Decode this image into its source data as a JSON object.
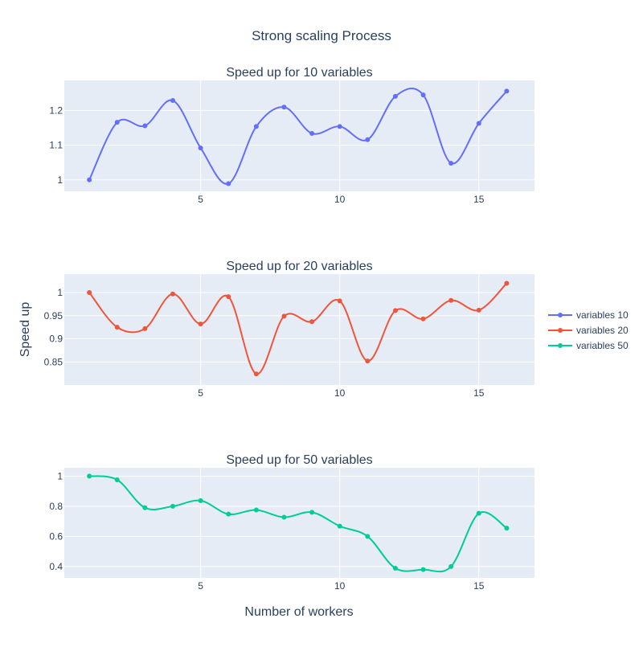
{
  "chart_data": {
    "type": "line",
    "title": "Strong scaling Process",
    "xlabel": "Number of workers",
    "ylabel": "Speed up",
    "x": [
      1,
      2,
      3,
      4,
      5,
      6,
      7,
      8,
      9,
      10,
      11,
      12,
      13,
      14,
      15,
      16
    ],
    "xlim": [
      0.1,
      17
    ],
    "xticks": [
      5,
      10,
      15
    ],
    "grid": true,
    "legend_position": "right",
    "colors": {
      "plot_bg": "#e5ecf6",
      "grid": "#ffffff",
      "text": "#2a3f5f"
    },
    "subplots": [
      {
        "title": "Speed up for 10 variables",
        "ylim": [
          0.967,
          1.287
        ],
        "yticks": [
          {
            "value": 1,
            "label": "1"
          },
          {
            "value": 1.1,
            "label": "1.1"
          },
          {
            "value": 1.2,
            "label": "1.2"
          }
        ],
        "series_index": 0
      },
      {
        "title": "Speed up for 20 variables",
        "ylim": [
          0.8,
          1.04
        ],
        "yticks": [
          {
            "value": 0.85,
            "label": "0.85"
          },
          {
            "value": 0.9,
            "label": "0.9"
          },
          {
            "value": 0.95,
            "label": "0.95"
          },
          {
            "value": 1,
            "label": "1"
          }
        ],
        "series_index": 1
      },
      {
        "title": "Speed up for 50 variables",
        "ylim": [
          0.325,
          1.055
        ],
        "yticks": [
          {
            "value": 0.4,
            "label": "0.4"
          },
          {
            "value": 0.6,
            "label": "0.6"
          },
          {
            "value": 0.8,
            "label": "0.8"
          },
          {
            "value": 1,
            "label": "1"
          }
        ],
        "series_index": 2
      }
    ],
    "series": [
      {
        "name": "variables 10",
        "color": "#636efa",
        "values": [
          1.0,
          1.166,
          1.156,
          1.229,
          1.092,
          0.989,
          1.154,
          1.21,
          1.134,
          1.154,
          1.116,
          1.241,
          1.245,
          1.048,
          1.163,
          1.256
        ]
      },
      {
        "name": "variables 20",
        "color": "#ef553b",
        "values": [
          1.0,
          0.925,
          0.922,
          0.997,
          0.932,
          0.991,
          0.824,
          0.949,
          0.937,
          0.982,
          0.852,
          0.961,
          0.943,
          0.983,
          0.962,
          1.02
        ]
      },
      {
        "name": "variables 50",
        "color": "#00cc96",
        "values": [
          1.0,
          0.975,
          0.79,
          0.8,
          0.837,
          0.748,
          0.775,
          0.727,
          0.76,
          0.668,
          0.6,
          0.389,
          0.38,
          0.4,
          0.753,
          0.655
        ]
      }
    ]
  }
}
